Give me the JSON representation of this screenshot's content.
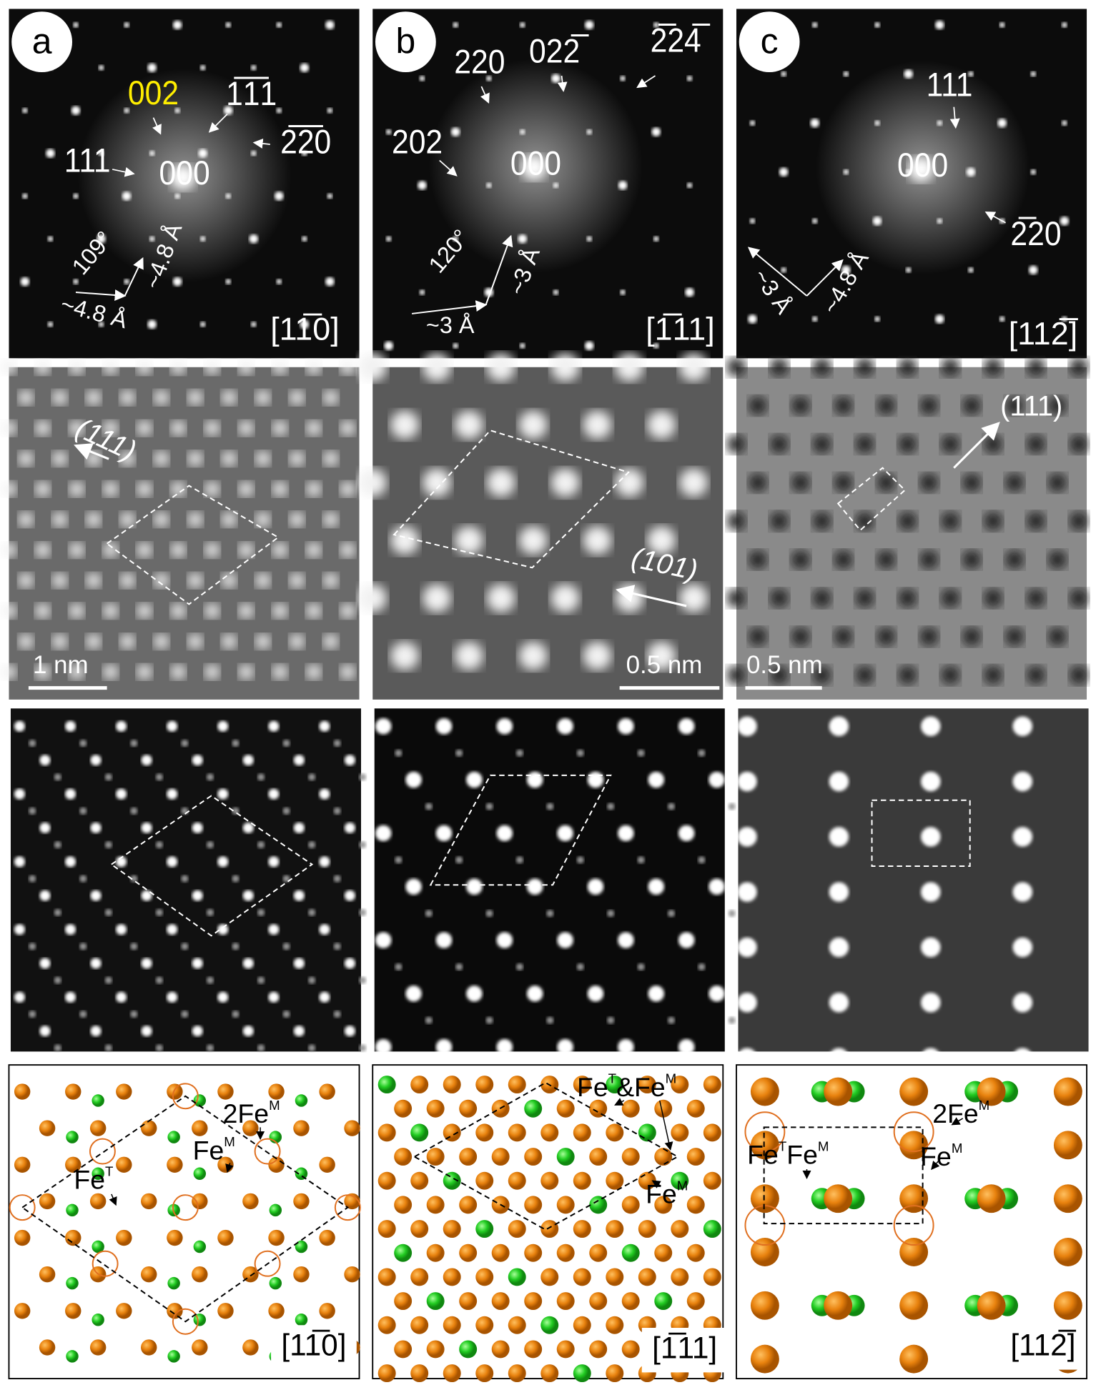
{
  "panels": [
    {
      "label": "a",
      "diffraction": {
        "reflections": [
          "002",
          "1̅1̅1",
          "2̅2̅0",
          "111",
          "000"
        ],
        "angle": "109°",
        "spacings": [
          "~4.8 Å",
          "~4.8 Å"
        ],
        "zone_axis": "[11̅0]"
      },
      "hrtem": {
        "plane": "(111)",
        "scale_bar": "1 nm"
      },
      "model": {
        "sites": [
          [
            {
              "base": "2Fe",
              "sup": "M"
            }
          ],
          [
            {
              "base": "Fe",
              "sup": "M"
            }
          ],
          [
            {
              "base": "Fe",
              "sup": "T"
            }
          ]
        ],
        "zone_axis": "[11̅0]"
      }
    },
    {
      "label": "b",
      "diffraction": {
        "reflections": [
          "220",
          "022̅",
          "2̅24̅",
          "202",
          "000"
        ],
        "angle": "120°",
        "spacings": [
          "~3 Å",
          "~3 Å"
        ],
        "zone_axis": "[1̅11]"
      },
      "hrtem": {
        "plane": "(101)",
        "scale_bar": "0.5 nm"
      },
      "model": {
        "sites": [
          [
            {
              "base": "Fe",
              "sup": "T"
            },
            {
              "base": "&Fe",
              "sup": "M"
            }
          ],
          [
            {
              "base": "Fe",
              "sup": "M"
            }
          ]
        ],
        "zone_axis": "[1̅11]"
      }
    },
    {
      "label": "c",
      "diffraction": {
        "reflections": [
          "111",
          "000",
          "2̅20"
        ],
        "spacings": [
          "~3 Å",
          "~4.8 Å"
        ],
        "zone_axis": "[112̅]"
      },
      "hrtem": {
        "plane": "(111)",
        "scale_bar": "0.5 nm"
      },
      "model": {
        "sites": [
          [
            {
              "base": "2Fe",
              "sup": "M"
            }
          ],
          [
            {
              "base": "Fe",
              "sup": "T"
            },
            {
              "base": "Fe",
              "sup": "M"
            }
          ],
          [
            {
              "base": "Fe",
              "sup": "M"
            }
          ]
        ],
        "zone_axis": "[112̅]"
      }
    }
  ]
}
